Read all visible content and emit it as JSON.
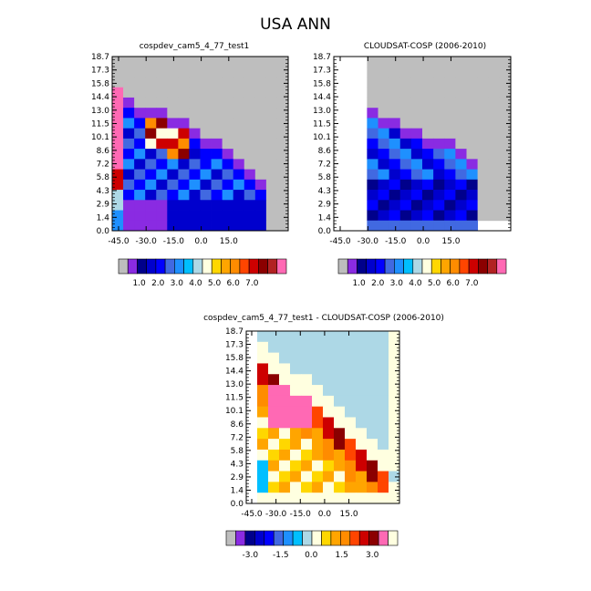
{
  "figure": {
    "title": "USA ANN"
  },
  "colors": {
    "missing": "#BEBEBE",
    "abs_scale": [
      "#BEBEBE",
      "#8A2BE2",
      "#00008B",
      "#0000CD",
      "#0000FF",
      "#4169E1",
      "#1E90FF",
      "#00BFFF",
      "#ADD8E6",
      "#FFFFE0",
      "#FFD700",
      "#FFA500",
      "#FF8C00",
      "#FF4500",
      "#CD0000",
      "#8B0000",
      "#B22222",
      "#FF69B4"
    ],
    "diff_scale": [
      "#BEBEBE",
      "#8A2BE2",
      "#00008B",
      "#0000CD",
      "#0000FF",
      "#4169E1",
      "#1E90FF",
      "#00BFFF",
      "#ADD8E6",
      "#FFFFE0",
      "#FFD700",
      "#FFA500",
      "#FF8C00",
      "#FF4500",
      "#CD0000",
      "#8B0000",
      "#FF69B4",
      "#FFFFE0"
    ]
  },
  "chart_data": [
    {
      "type": "heatmap",
      "title": "cospdev_cam5_4_77_test1",
      "x_ticks": [
        "-45.0",
        "-30.0",
        "-15.0",
        "0.0",
        "15.0"
      ],
      "y_ticks": [
        "0.0",
        "1.4",
        "2.9",
        "4.3",
        "5.8",
        "7.2",
        "8.6",
        "10.1",
        "11.5",
        "13.0",
        "14.4",
        "15.8",
        "17.3",
        "18.7"
      ],
      "colorbar_labels": [
        "1.0",
        "2.0",
        "3.0",
        "4.0",
        "5.0",
        "6.0",
        "7.0"
      ],
      "panel": "top-left"
    },
    {
      "type": "heatmap",
      "title": "CLOUDSAT-COSP (2006-2010)",
      "x_ticks": [
        "-45.0",
        "-30.0",
        "-15.0",
        "0.0",
        "15.0"
      ],
      "y_ticks": [
        "0.0",
        "1.4",
        "2.9",
        "4.3",
        "5.8",
        "7.2",
        "8.6",
        "10.1",
        "11.5",
        "13.0",
        "14.4",
        "15.8",
        "17.3",
        "18.7"
      ],
      "colorbar_labels": [
        "1.0",
        "2.0",
        "3.0",
        "4.0",
        "5.0",
        "6.0",
        "7.0"
      ],
      "panel": "top-right"
    },
    {
      "type": "heatmap",
      "title": "cospdev_cam5_4_77_test1 - CLOUDSAT-COSP (2006-2010)",
      "x_ticks": [
        "-45.0",
        "-30.0",
        "-15.0",
        "0.0",
        "15.0"
      ],
      "y_ticks": [
        "0.0",
        "1.4",
        "2.9",
        "4.3",
        "5.8",
        "7.2",
        "8.6",
        "10.1",
        "11.5",
        "13.0",
        "14.4",
        "15.8",
        "17.3",
        "18.7"
      ],
      "colorbar_labels": [
        "-3.0",
        "-1.5",
        "0.0",
        "1.5",
        "3.0"
      ],
      "panel": "bottom-center"
    }
  ]
}
